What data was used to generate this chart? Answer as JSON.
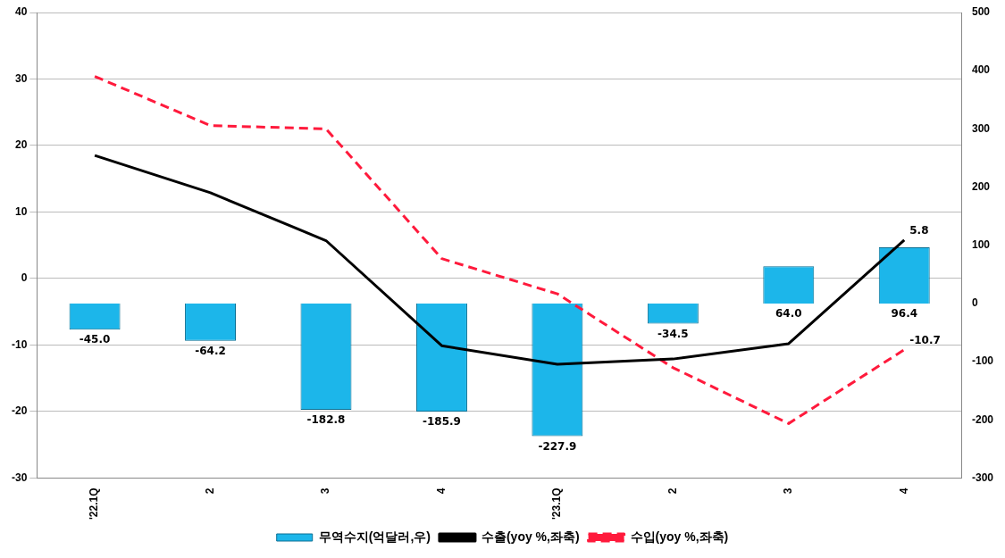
{
  "chart_data": {
    "type": "line",
    "categories": [
      "'22.1Q",
      "2",
      "3",
      "4",
      "'23.1Q",
      "2",
      "3",
      "4"
    ],
    "series": [
      {
        "name": "무역수지(억달러,우)",
        "type": "bar",
        "axis": "y2",
        "color": "#1cb6ea",
        "values": [
          -45.0,
          -64.2,
          -182.8,
          -185.9,
          -227.9,
          -34.5,
          64.0,
          96.4
        ],
        "value_labels": [
          "-45.0",
          "-64.2",
          "-182.8",
          "-185.9",
          "-227.9",
          "-34.5",
          "64.0",
          "96.4"
        ]
      },
      {
        "name": "수출(yoy %,좌축)",
        "color": "#000000",
        "line_style": "solid",
        "values": [
          18.5,
          12.9,
          5.7,
          -10.1,
          -12.9,
          -12.1,
          -9.8,
          5.8
        ],
        "value_labels": [
          null,
          null,
          null,
          null,
          null,
          null,
          null,
          "5.8"
        ]
      },
      {
        "name": "수입(yoy %,좌축)",
        "color": "#ff1a3c",
        "line_style": "dashed",
        "values": [
          30.4,
          23.0,
          22.5,
          3.0,
          -2.3,
          -13.4,
          -21.8,
          -10.7
        ],
        "value_labels": [
          null,
          null,
          null,
          null,
          null,
          null,
          null,
          "-10.7"
        ]
      }
    ],
    "ylim": [
      -30,
      40
    ],
    "yticks": [
      -30,
      -20,
      -10,
      0,
      10,
      20,
      30,
      40
    ],
    "y2lim": [
      -300,
      500
    ],
    "y2ticks": [
      -300,
      -200,
      -100,
      0,
      100,
      200,
      300,
      400,
      500
    ],
    "grid": "y",
    "legend": "bottom",
    "marker": "none"
  }
}
